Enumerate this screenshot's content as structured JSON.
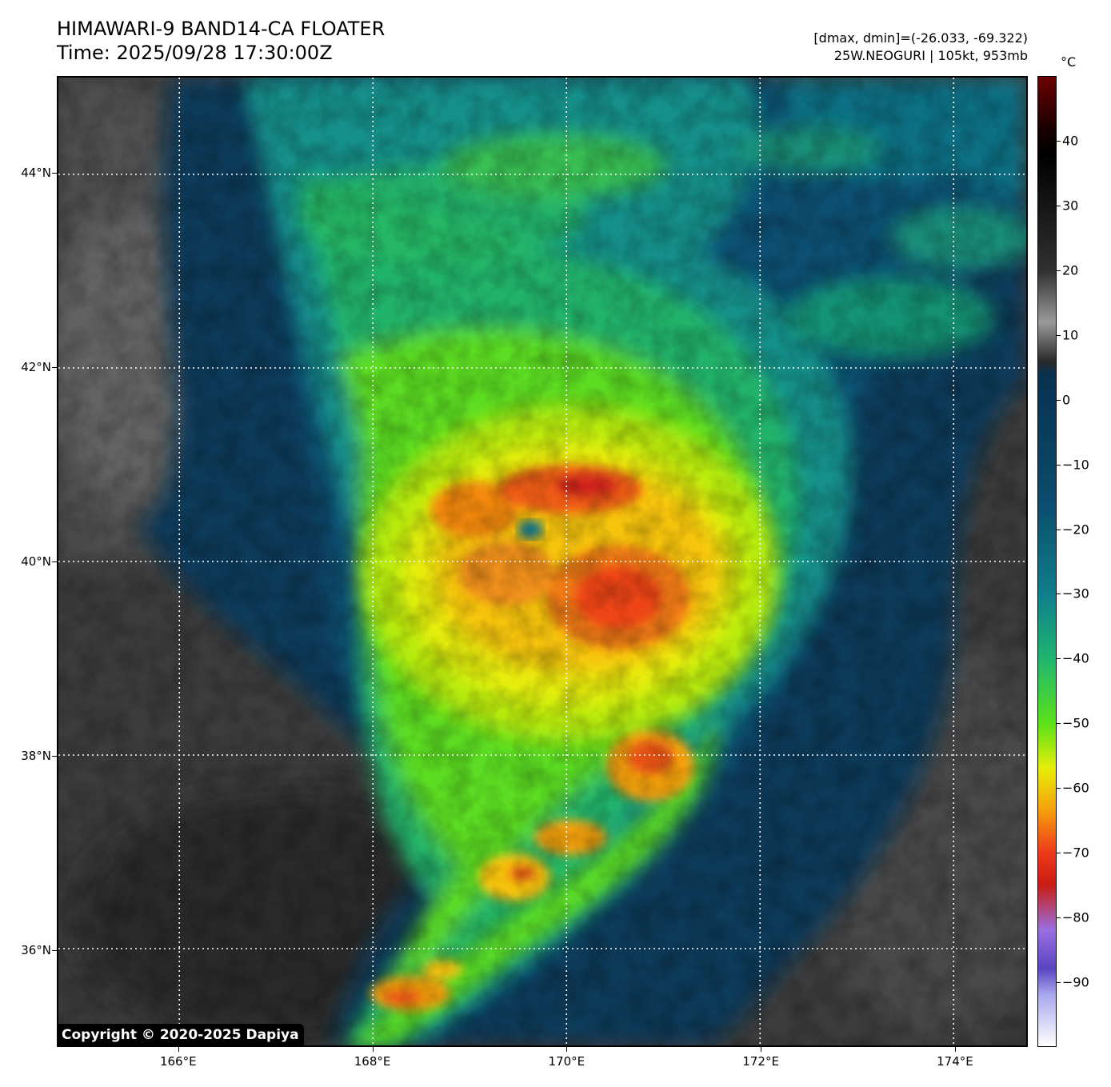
{
  "header": {
    "title_line1": "HIMAWARI-9 BAND14-CA FLOATER",
    "title_line2": "Time: 2025/09/28 17:30:00Z",
    "data_range": "[dmax, dmin]=(-26.033, -69.322)",
    "storm_info": "25W.NEOGURI | 105kt, 953mb"
  },
  "map": {
    "lat_range": [
      35,
      45
    ],
    "lon_range": [
      164.75,
      174.75
    ],
    "lat_ticks": [
      {
        "value": 44,
        "label": "44°N"
      },
      {
        "value": 42,
        "label": "42°N"
      },
      {
        "value": 40,
        "label": "40°N"
      },
      {
        "value": 38,
        "label": "38°N"
      },
      {
        "value": 36,
        "label": "36°N"
      }
    ],
    "lon_ticks": [
      {
        "value": 166,
        "label": "166°E"
      },
      {
        "value": 168,
        "label": "168°E"
      },
      {
        "value": 170,
        "label": "170°E"
      },
      {
        "value": 172,
        "label": "172°E"
      },
      {
        "value": 174,
        "label": "174°E"
      }
    ],
    "gridlines": "dotted white",
    "storm_center": {
      "lat": 40.3,
      "lon": 169.7
    }
  },
  "colorbar": {
    "unit": "°C",
    "range": [
      -100,
      50
    ],
    "ticks": [
      40,
      30,
      20,
      10,
      0,
      -10,
      -20,
      -30,
      -40,
      -50,
      -60,
      -70,
      -80,
      -90
    ],
    "tick_labels": [
      "40",
      "30",
      "20",
      "10",
      "0",
      "−10",
      "−20",
      "−30",
      "−40",
      "−50",
      "−60",
      "−70",
      "−80",
      "−90"
    ],
    "stops": [
      {
        "value": 50,
        "color": "#6b0000"
      },
      {
        "value": 42,
        "color": "#1a0000"
      },
      {
        "value": 38,
        "color": "#000000"
      },
      {
        "value": 20,
        "color": "#303030"
      },
      {
        "value": 12,
        "color": "#9a9a9a"
      },
      {
        "value": 6,
        "color": "#2a2a2a"
      },
      {
        "value": 4,
        "color": "#08314f"
      },
      {
        "value": -15,
        "color": "#0b4a6b"
      },
      {
        "value": -30,
        "color": "#0f7d8c"
      },
      {
        "value": -40,
        "color": "#1fb570"
      },
      {
        "value": -50,
        "color": "#5ae11a"
      },
      {
        "value": -57,
        "color": "#e6ee0a"
      },
      {
        "value": -63,
        "color": "#f5a60d"
      },
      {
        "value": -70,
        "color": "#ee3a1a"
      },
      {
        "value": -75,
        "color": "#c91b12"
      },
      {
        "value": -82,
        "color": "#9a6fe0"
      },
      {
        "value": -88,
        "color": "#5a44c0"
      },
      {
        "value": -92,
        "color": "#a7a7ee"
      },
      {
        "value": -100,
        "color": "#ffffff"
      }
    ]
  },
  "copyright": "Copyright © 2020-2025 Dapiya"
}
